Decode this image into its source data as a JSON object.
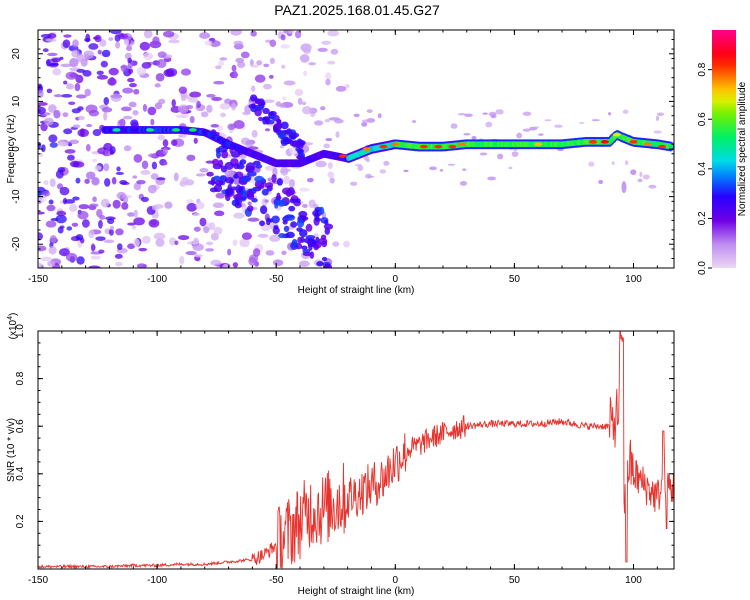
{
  "title": "PAZ1.2025.168.01.45.G27",
  "chart_data": [
    {
      "type": "heatmap",
      "xlabel": "Height of straight line (km)",
      "ylabel": "Frequency (Hz)",
      "xlim": [
        -150,
        117
      ],
      "ylim": [
        -25,
        25
      ],
      "xticks": [
        "-150",
        "-100",
        "-50",
        "0",
        "50",
        "100"
      ],
      "yticks": [
        "20",
        "10",
        "0",
        "-10",
        "-20"
      ],
      "colorbar": {
        "label": "Normalized spectral amplitude",
        "range": [
          0,
          0.96
        ],
        "ticks": [
          "0.0",
          "0.2",
          "0.4",
          "0.6",
          "0.8"
        ]
      },
      "ridge": {
        "x": [
          -120,
          -110,
          -100,
          -90,
          -80,
          -70,
          -60,
          -50,
          -40,
          -30,
          -25,
          -20,
          -15,
          -10,
          0,
          10,
          20,
          30,
          40,
          50,
          60,
          70,
          80,
          90,
          93,
          95,
          100,
          110,
          116
        ],
        "y": [
          4,
          4,
          4,
          4,
          3.5,
          1,
          -1,
          -3,
          -3,
          -1,
          -1.5,
          -2,
          -1,
          0,
          1,
          0.5,
          0.5,
          1,
          1,
          1,
          1,
          1,
          1.5,
          1.5,
          3,
          2.5,
          1.5,
          1,
          0.5
        ]
      },
      "grid": false,
      "legend": "right"
    },
    {
      "type": "line",
      "xlabel": "Height of straight line (km)",
      "ylabel": "SNR (10 * v/v)",
      "exponent_label": "(x10",
      "exponent_power": "4",
      "exponent_close": ")",
      "xlim": [
        -150,
        117
      ],
      "ylim": [
        0,
        1.0
      ],
      "xticks": [
        "-150",
        "-100",
        "-50",
        "0",
        "50",
        "100"
      ],
      "yticks": [
        "1.0",
        "0.8",
        "0.6",
        "0.4",
        "0.2"
      ],
      "color": "#e8322d",
      "x": [
        -150,
        -140,
        -130,
        -120,
        -110,
        -100,
        -90,
        -80,
        -70,
        -60,
        -55,
        -50,
        -45,
        -40,
        -35,
        -30,
        -25,
        -20,
        -15,
        -10,
        -5,
        0,
        5,
        10,
        15,
        20,
        25,
        30,
        40,
        50,
        60,
        70,
        80,
        90,
        92,
        94,
        95,
        96,
        98,
        100,
        105,
        110,
        113,
        116
      ],
      "values": [
        0.01,
        0.01,
        0.01,
        0.01,
        0.015,
        0.015,
        0.02,
        0.02,
        0.03,
        0.04,
        0.06,
        0.1,
        0.15,
        0.2,
        0.25,
        0.25,
        0.28,
        0.3,
        0.32,
        0.35,
        0.38,
        0.45,
        0.5,
        0.52,
        0.55,
        0.57,
        0.59,
        0.6,
        0.61,
        0.61,
        0.61,
        0.62,
        0.6,
        0.6,
        0.62,
        0.68,
        0.9,
        0.3,
        0.45,
        0.4,
        0.35,
        0.3,
        0.38,
        0.34
      ],
      "grid": false
    }
  ]
}
